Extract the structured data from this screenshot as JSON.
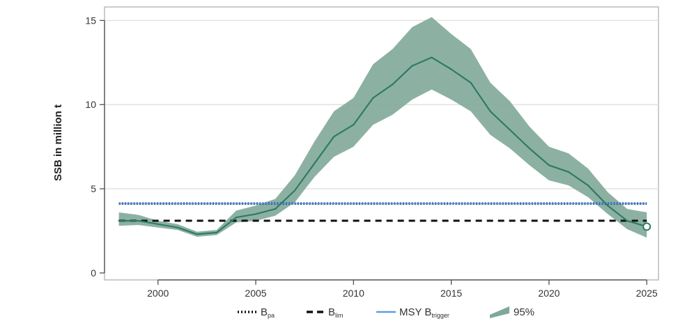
{
  "chart_data": {
    "type": "line",
    "title": "",
    "xlabel": "",
    "ylabel": "SSB in million t",
    "xlim": [
      1997.8,
      2025.6
    ],
    "ylim": [
      0,
      15.8
    ],
    "x_ticks": [
      2000,
      2005,
      2010,
      2015,
      2020,
      2025
    ],
    "y_ticks": [
      0,
      5,
      10,
      15
    ],
    "grid": "horizontal",
    "legend_position": "bottom",
    "colors": {
      "ssb": "#2f7a68",
      "band": "#7fa898",
      "bpa": "#1f2f6b",
      "blim": "#111111",
      "msy": "#5aa0e6",
      "frame": "#bbbbbb",
      "grid": "#e2e2e2"
    },
    "series": [
      {
        "name": "SSB",
        "x": [
          1998,
          1999,
          2000,
          2001,
          2002,
          2003,
          2004,
          2005,
          2006,
          2007,
          2008,
          2009,
          2010,
          2011,
          2012,
          2013,
          2014,
          2015,
          2016,
          2017,
          2018,
          2019,
          2020,
          2021,
          2022,
          2023,
          2024,
          2025
        ],
        "values": [
          3.1,
          3.1,
          2.9,
          2.7,
          2.3,
          2.4,
          3.3,
          3.5,
          3.8,
          4.9,
          6.5,
          8.1,
          8.8,
          10.4,
          11.2,
          12.3,
          12.8,
          12.1,
          11.3,
          9.6,
          8.5,
          7.4,
          6.4,
          6.0,
          5.2,
          4.0,
          3.1,
          2.75
        ]
      },
      {
        "name": "95%",
        "x": [
          1998,
          1999,
          2000,
          2001,
          2002,
          2003,
          2004,
          2005,
          2006,
          2007,
          2008,
          2009,
          2010,
          2011,
          2012,
          2013,
          2014,
          2015,
          2016,
          2017,
          2018,
          2019,
          2020,
          2021,
          2022,
          2023,
          2024,
          2025
        ],
        "lower": [
          2.8,
          2.85,
          2.7,
          2.55,
          2.15,
          2.25,
          3.0,
          3.1,
          3.4,
          4.2,
          5.7,
          6.9,
          7.5,
          8.8,
          9.4,
          10.3,
          10.9,
          10.3,
          9.6,
          8.2,
          7.4,
          6.4,
          5.5,
          5.2,
          4.5,
          3.5,
          2.6,
          2.1
        ],
        "upper": [
          3.6,
          3.45,
          3.1,
          2.9,
          2.45,
          2.55,
          3.7,
          4.0,
          4.4,
          5.8,
          7.8,
          9.6,
          10.4,
          12.4,
          13.3,
          14.6,
          15.2,
          14.2,
          13.3,
          11.3,
          10.2,
          8.7,
          7.5,
          7.1,
          6.2,
          4.8,
          3.8,
          3.6
        ]
      }
    ],
    "reference_lines": [
      {
        "name": "Bpa",
        "value": 4.12,
        "style": "dotted"
      },
      {
        "name": "Blim",
        "value": 3.1,
        "style": "dashed"
      },
      {
        "name": "MSY Btrigger",
        "value": 4.12,
        "style": "solid"
      }
    ],
    "legend": [
      {
        "key": "bpa",
        "main": "B",
        "sub": "pa"
      },
      {
        "key": "blim",
        "main": "B",
        "sub": "lim"
      },
      {
        "key": "msy",
        "main": "MSY B",
        "sub": "trigger"
      },
      {
        "key": "band",
        "main": "95%",
        "sub": ""
      }
    ]
  }
}
